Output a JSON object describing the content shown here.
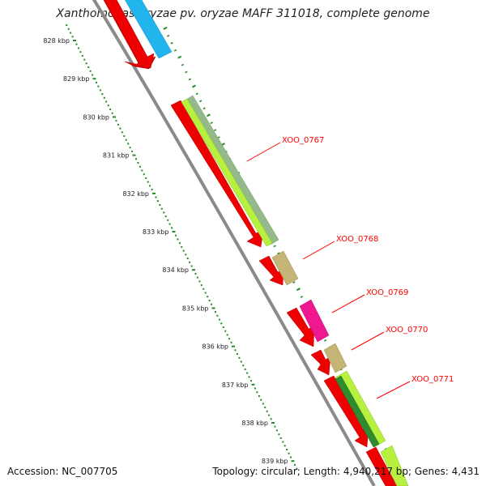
{
  "title": "Xanthomonas oryzae pv. oryzae MAFF 311018, complete genome",
  "accession_label": "Accession: NC_007705",
  "summary_label": "Topology: circular; Length: 4,940,217 bp; Genes: 4,431",
  "scale": {
    "ticks": [
      {
        "label": "828 kbp",
        "kbp": 828
      },
      {
        "label": "829 kbp",
        "kbp": 829
      },
      {
        "label": "830 kbp",
        "kbp": 830
      },
      {
        "label": "831 kbp",
        "kbp": 831
      },
      {
        "label": "832 kbp",
        "kbp": 832
      },
      {
        "label": "833 kbp",
        "kbp": 833
      },
      {
        "label": "834 kbp",
        "kbp": 834
      },
      {
        "label": "835 kbp",
        "kbp": 835
      },
      {
        "label": "836 kbp",
        "kbp": 836
      },
      {
        "label": "837 kbp",
        "kbp": 837
      },
      {
        "label": "838 kbp",
        "kbp": 838
      },
      {
        "label": "839 kbp",
        "kbp": 839
      }
    ]
  },
  "colors": {
    "cds": "#ff0000",
    "backbone": "#888888",
    "ticks": "#228b22",
    "label_line": "#ff0000",
    "feature_blue": "#33bbee",
    "feature_lime": "#b5f54a",
    "feature_sage": "#8fbc8f",
    "feature_khaki": "#c2b280",
    "feature_magenta": "#ff1493",
    "feature_green": "#2e8b2e"
  },
  "features": [
    {
      "name": "XOO_0767",
      "label": "XOO_0767"
    },
    {
      "name": "XOO_0768",
      "label": "XOO_0768"
    },
    {
      "name": "XOO_0769",
      "label": "XOO_0769"
    },
    {
      "name": "XOO_0770",
      "label": "XOO_0770"
    },
    {
      "name": "XOO_0771",
      "label": "XOO_0771"
    }
  ]
}
